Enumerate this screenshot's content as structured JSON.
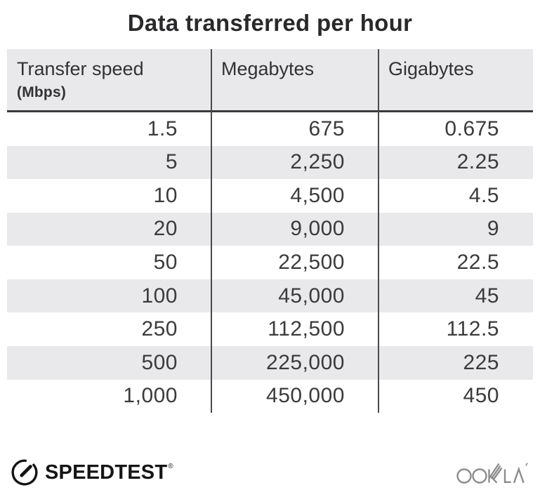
{
  "title": "Data transferred per hour",
  "table": {
    "headers": [
      {
        "label": "Transfer speed",
        "sub": "(Mbps)"
      },
      {
        "label": "Megabytes",
        "sub": ""
      },
      {
        "label": "Gigabytes",
        "sub": ""
      }
    ],
    "rows": [
      [
        "1.5",
        "675",
        "0.675"
      ],
      [
        "5",
        "2,250",
        "2.25"
      ],
      [
        "10",
        "4,500",
        "4.5"
      ],
      [
        "20",
        "9,000",
        "9"
      ],
      [
        "50",
        "22,500",
        "22.5"
      ],
      [
        "100",
        "45,000",
        "45"
      ],
      [
        "250",
        "112,500",
        "112.5"
      ],
      [
        "500",
        "225,000",
        "225"
      ],
      [
        "1,000",
        "450,000",
        "450"
      ]
    ]
  },
  "footer": {
    "speedtest_label": "SPEEDTEST",
    "speedtest_trademark": "®",
    "ookla_label": "OOKLA"
  },
  "colors": {
    "header_bg": "#e9e9eb",
    "stripe": "#e9e9eb",
    "divider": "#4a4a4c",
    "header_border": "#39393b",
    "title_text": "#29292b",
    "cell_text": "#3b3b3d",
    "speedtest_black": "#141414",
    "ookla_gray": "#8d8d8d"
  },
  "chart_data": {
    "type": "table",
    "title": "Data transferred per hour",
    "columns": [
      "Transfer speed (Mbps)",
      "Megabytes",
      "Gigabytes"
    ],
    "rows": [
      [
        1.5,
        675,
        0.675
      ],
      [
        5,
        2250,
        2.25
      ],
      [
        10,
        4500,
        4.5
      ],
      [
        20,
        9000,
        9
      ],
      [
        50,
        22500,
        22.5
      ],
      [
        100,
        45000,
        45
      ],
      [
        250,
        112500,
        112.5
      ],
      [
        500,
        225000,
        225
      ],
      [
        1000,
        450000,
        450
      ]
    ]
  }
}
